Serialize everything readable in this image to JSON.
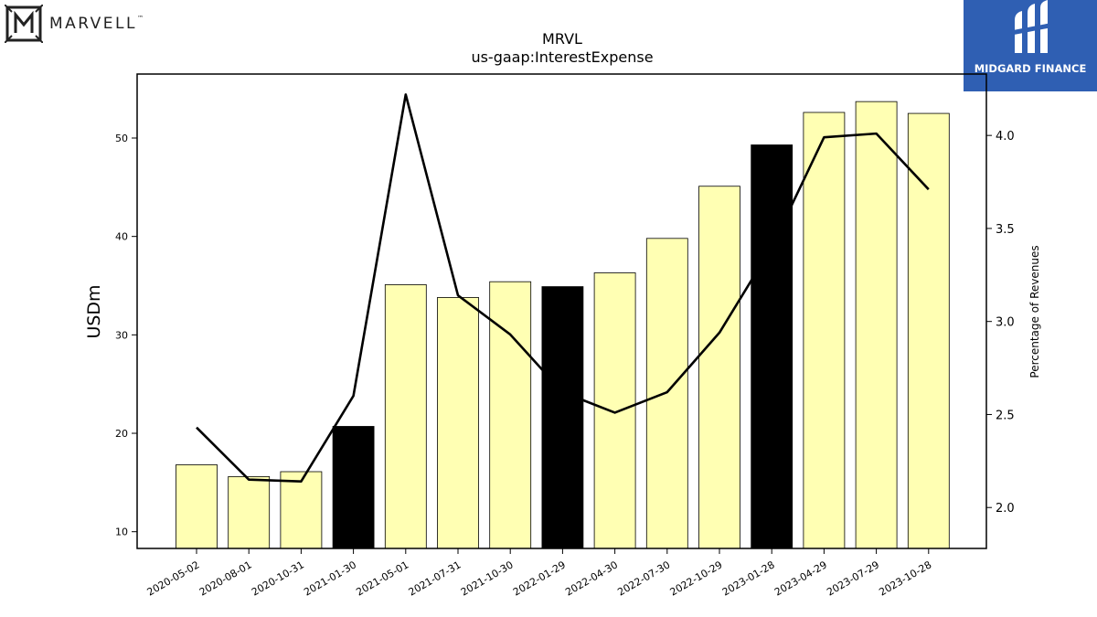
{
  "logos": {
    "left_text": "MARVELL",
    "left_tm": "™",
    "right_text": "MIDGARD FINANCE"
  },
  "chart_data": {
    "type": "bar",
    "title": "MRVL",
    "subtitle": "us-gaap:InterestExpense",
    "ylabel": "USDm",
    "y2label": "Percentage of Revenues",
    "categories": [
      "2020-05-02",
      "2020-08-01",
      "2020-10-31",
      "2021-01-30",
      "2021-05-01",
      "2021-07-31",
      "2021-10-30",
      "2022-01-29",
      "2022-04-30",
      "2022-07-30",
      "2022-10-29",
      "2023-01-28",
      "2023-04-29",
      "2023-07-29",
      "2023-10-28"
    ],
    "values": [
      16.8,
      15.6,
      16.1,
      20.7,
      35.1,
      33.8,
      35.4,
      34.9,
      36.3,
      39.8,
      45.1,
      49.3,
      52.6,
      53.7,
      52.5
    ],
    "highlight": [
      false,
      false,
      false,
      true,
      false,
      false,
      false,
      true,
      false,
      false,
      false,
      true,
      false,
      false,
      false
    ],
    "line_values": [
      2.43,
      2.15,
      2.14,
      2.6,
      4.22,
      3.14,
      2.93,
      2.62,
      2.51,
      2.62,
      2.94,
      3.4,
      3.99,
      4.01,
      3.71
    ],
    "ylim": [
      8.3,
      56.5
    ],
    "y2lim": [
      1.78,
      4.33
    ],
    "yticks": [
      10,
      20,
      30,
      40,
      50
    ],
    "y2ticks": [
      "2.0",
      "2.5",
      "3.0",
      "3.5",
      "4.0"
    ],
    "colors": {
      "bar": "#ffffb3",
      "highlight": "#000000",
      "line": "#000000"
    },
    "grid": false
  }
}
